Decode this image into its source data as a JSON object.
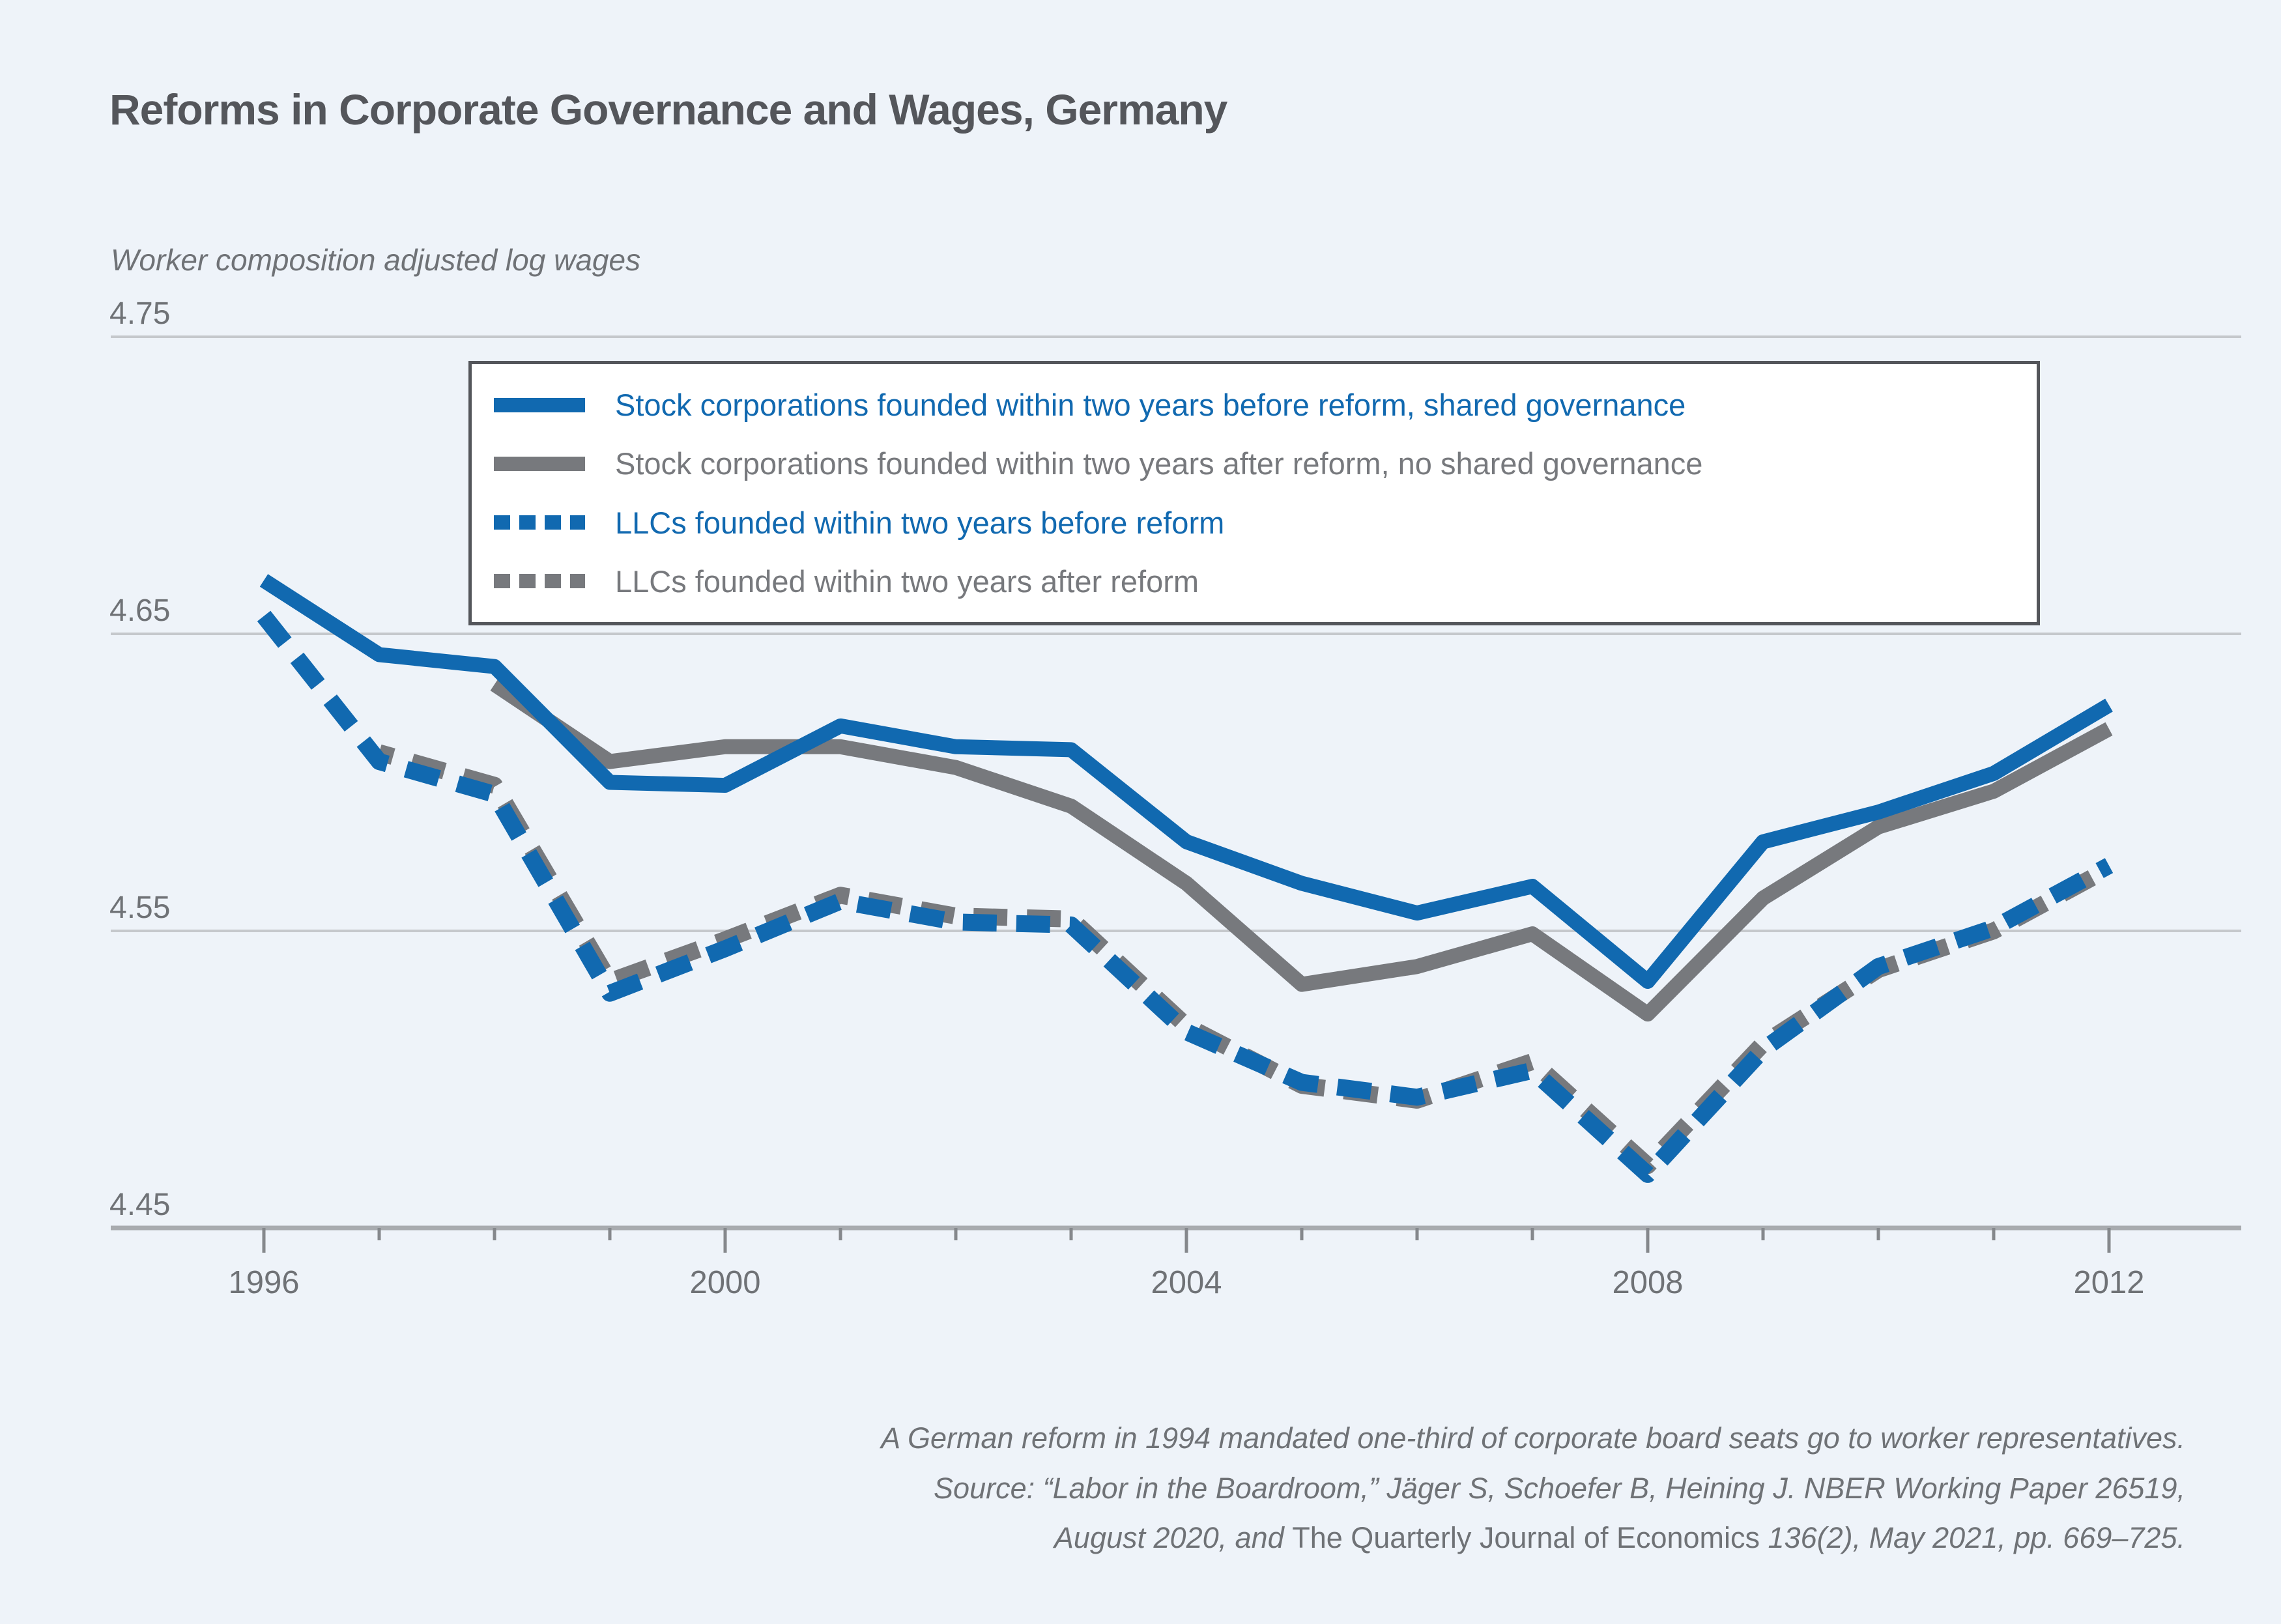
{
  "title": "Reforms in Corporate Governance and Wages, Germany",
  "subtitle": "Worker composition adjusted log wages",
  "colors": {
    "blue": "#1169b0",
    "gray": "#77797d",
    "grid": "#c5c8cc",
    "axis": "#a8abaf",
    "tick": "#85888c",
    "muted_text": "#6f7276",
    "title_text": "#54565b",
    "legend_border": "#54565b",
    "background": "#eef3f9"
  },
  "caption": {
    "line1": "A German reform in 1994 mandated one-third of corporate board seats go to worker representatives.",
    "line2": "Source: “Labor in the Boardroom,” Jäger S, Schoefer B, Heining J. NBER Working Paper 26519,",
    "line3_pre": "August 2020, and ",
    "line3_journal": "The Quarterly Journal of Economics",
    "line3_post": " 136(2), May 2021, pp. 669–725."
  },
  "chart_data": {
    "type": "line",
    "ylabel": "Worker composition adjusted log wages",
    "ylim": [
      4.45,
      4.75
    ],
    "yticks": [
      {
        "value": 4.75,
        "grid": true
      },
      {
        "value": 4.65,
        "grid": true
      },
      {
        "value": 4.55,
        "grid": true
      },
      {
        "value": 4.45,
        "grid": false
      }
    ],
    "x": [
      1996,
      1997,
      1998,
      1999,
      2000,
      2001,
      2002,
      2003,
      2004,
      2005,
      2006,
      2007,
      2008,
      2009,
      2010,
      2011,
      2012
    ],
    "x_major_ticks": [
      1996,
      2000,
      2004,
      2008,
      2012
    ],
    "legend_position": "top-center",
    "series": [
      {
        "name": "Stock corporations founded within two years before reform, shared governance",
        "color": "blue",
        "dash": false,
        "values": [
          4.668,
          4.643,
          4.639,
          4.6,
          4.599,
          4.619,
          4.612,
          4.611,
          4.58,
          4.566,
          4.556,
          4.565,
          4.533,
          4.58,
          4.59,
          4.603,
          4.626
        ]
      },
      {
        "name": "Stock corporations founded within two years after reform, no shared governance",
        "color": "gray",
        "dash": false,
        "values": [
          null,
          null,
          4.633,
          4.607,
          4.612,
          4.612,
          4.605,
          4.592,
          4.566,
          4.532,
          4.538,
          4.549,
          4.522,
          4.561,
          4.585,
          4.597,
          4.618
        ]
      },
      {
        "name": "LLCs founded within two years before reform",
        "color": "blue",
        "dash": true,
        "values": [
          4.656,
          4.607,
          4.596,
          4.529,
          4.544,
          4.56,
          4.553,
          4.552,
          4.516,
          4.499,
          4.494,
          4.503,
          4.468,
          4.51,
          4.538,
          4.551,
          4.572
        ]
      },
      {
        "name": "LLCs founded within two years after reform",
        "color": "gray",
        "dash": true,
        "values": [
          null,
          4.61,
          4.599,
          4.533,
          4.547,
          4.562,
          4.555,
          4.554,
          4.518,
          4.498,
          4.493,
          4.506,
          4.471,
          4.512,
          4.537,
          4.55,
          4.571
        ]
      }
    ]
  }
}
